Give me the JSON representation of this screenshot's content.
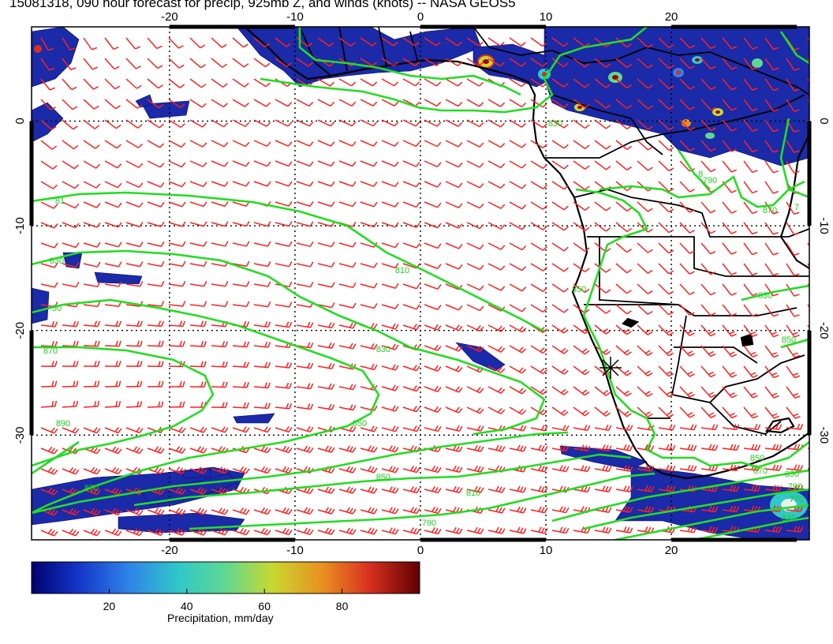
{
  "title": "15081318, 090 hour forecast for precip, 925mb Z, and winds (knots) -- NASA GEOS5",
  "map": {
    "lon_range": [
      -31,
      31
    ],
    "lat_range": [
      9,
      -40
    ],
    "lon_ticks": [
      "-20",
      "-10",
      "0",
      "10",
      "20"
    ],
    "lat_ticks": [
      "0",
      "-10",
      "-20",
      "-30"
    ],
    "contour_color": "#22dd22",
    "barb_color": "#ff0000",
    "contour_labels": [
      "81",
      "830",
      "50",
      "870",
      "890",
      "810",
      "830",
      "850",
      "850",
      "870",
      "810",
      "790",
      "850",
      "830",
      "790",
      "770",
      "830",
      "870",
      "850",
      "830",
      "790",
      "870",
      "850",
      "830",
      "8",
      "7"
    ]
  },
  "colorbar": {
    "label": "Precipitation, mm/day",
    "ticks": [
      "20",
      "40",
      "60",
      "80"
    ],
    "range": [
      0,
      100
    ],
    "colors": [
      "#00006e",
      "#1434c8",
      "#2f83e8",
      "#30c8c8",
      "#60d890",
      "#c8d830",
      "#e89020",
      "#d83020",
      "#a00000",
      "#600000"
    ]
  }
}
